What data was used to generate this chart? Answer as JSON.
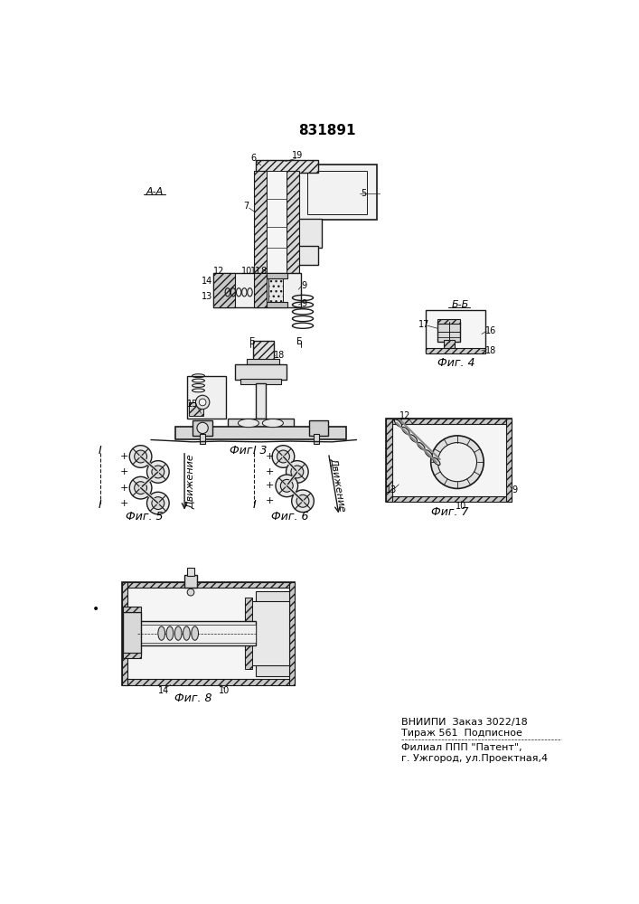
{
  "title": "831891",
  "background_color": "#ffffff",
  "fig3_label": "Фиг. 3",
  "fig4_label": "Фиг. 4",
  "fig5_label": "Фиг. 5",
  "fig6_label": "Фиг. 6",
  "fig7_label": "Фиг. 7",
  "fig8_label": "Фиг. 8",
  "section_aa": "А-А",
  "section_bb": "Б-Б",
  "bottom_text_line1": "ВНИИПИ  Заказ 3022/18",
  "bottom_text_line2": "Тираж 561  Подписное",
  "bottom_text_line3": "Филиал ППП \"Патент\",",
  "bottom_text_line4": "г. Ужгород, ул.Проектная,4",
  "line_color": "#1a1a1a",
  "text_color": "#000000",
  "движение_text": "Движение"
}
